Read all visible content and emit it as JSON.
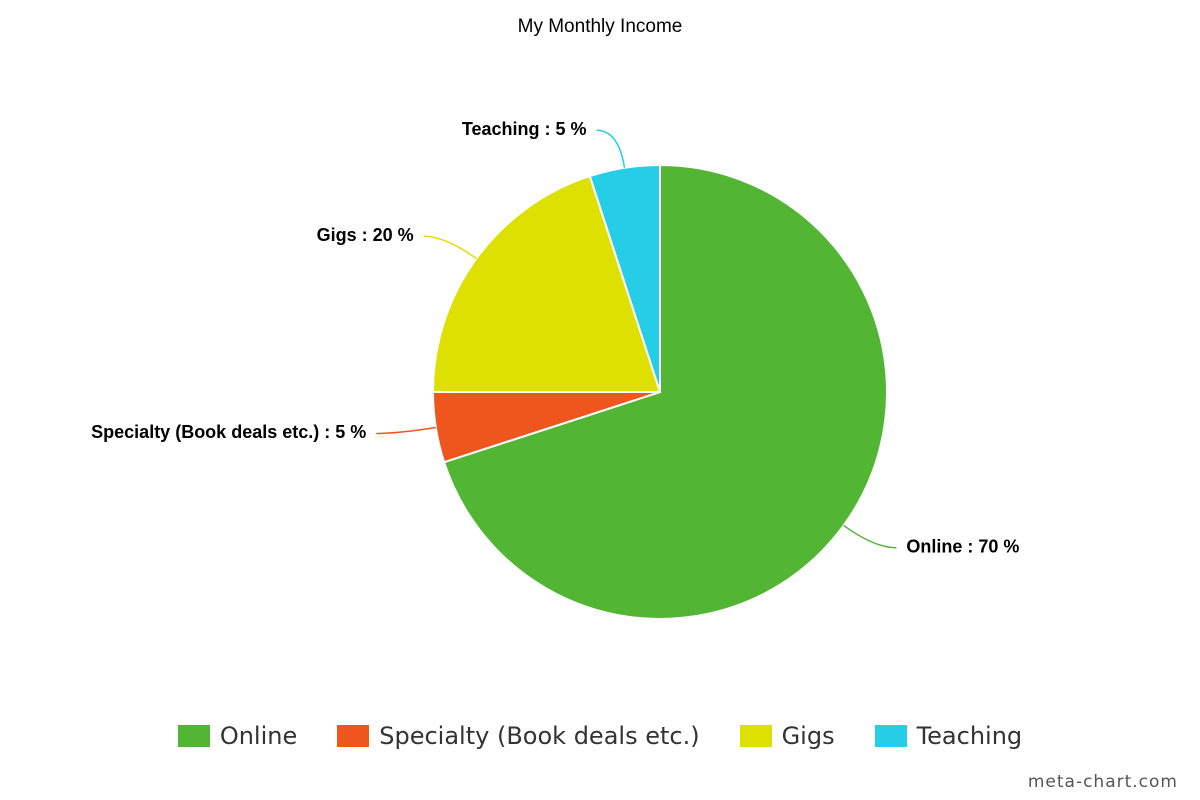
{
  "chart_data": {
    "type": "pie",
    "title": "My Monthly Income",
    "categories": [
      "Online",
      "Specialty (Book deals etc.)",
      "Gigs",
      "Teaching"
    ],
    "values": [
      70,
      5,
      20,
      5
    ],
    "value_labels": [
      "Online : 70 %",
      "Specialty (Book deals etc.) : 5 %",
      "Gigs : 20 %",
      "Teaching : 5 %"
    ],
    "colors": [
      "#52b534",
      "#ee561e",
      "#dde000",
      "#25cde6"
    ],
    "legend": "bottom",
    "credit": "meta-chart.com"
  }
}
